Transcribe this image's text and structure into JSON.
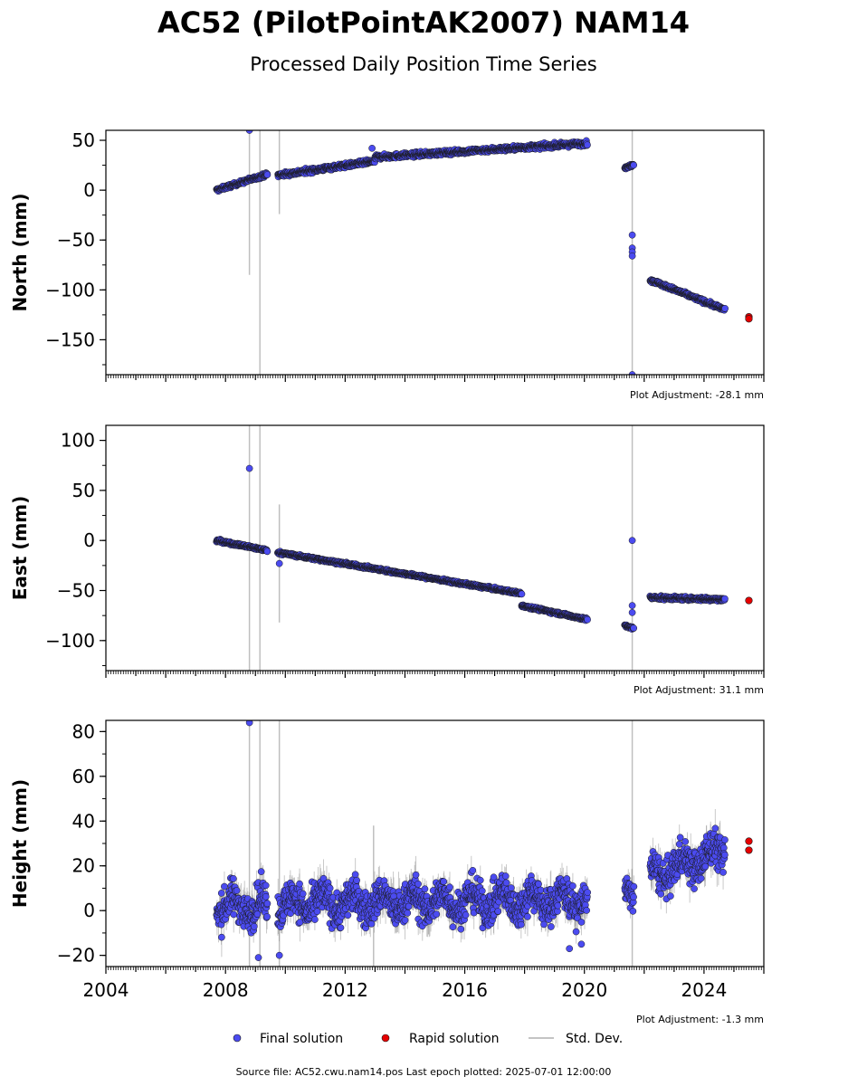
{
  "title": "AC52 (PilotPointAK2007) NAM14",
  "subtitle": "Processed Daily Position Time Series",
  "footer": "Source file: AC52.cwu.nam14.pos  Last epoch plotted: 2025-07-01 12:00:00",
  "colors": {
    "final": "#4b4bf0",
    "rapid": "#e60000",
    "stddev": "#b0b0b0",
    "marker_edge": "#1a1a1a"
  },
  "legend": {
    "position": "bottom-center",
    "items": [
      {
        "label": "Final solution",
        "marker": "dot",
        "color": "#4b4bf0"
      },
      {
        "label": "Rapid solution",
        "marker": "dot",
        "color": "#e60000"
      },
      {
        "label": "Std. Dev.",
        "marker": "line",
        "color": "#b0b0b0"
      }
    ]
  },
  "chart_data": [
    {
      "type": "scatter",
      "ylabel": "North (mm)",
      "xlim": [
        2004.0,
        2026.0
      ],
      "ylim": [
        -185,
        60
      ],
      "yticks": [
        50,
        0,
        -50,
        -100,
        -150
      ],
      "xtick_labels_shown": false,
      "adjustment": "Plot Adjustment: -28.1 mm",
      "stddev_lines": [
        {
          "x": 2008.8,
          "y0": -85,
          "y1": 60
        },
        {
          "x": 2009.15,
          "y0": -185,
          "y1": 60
        },
        {
          "x": 2009.8,
          "y0": -24,
          "y1": 60
        },
        {
          "x": 2021.6,
          "y0": -185,
          "y1": 60
        }
      ],
      "final_segments": [
        {
          "x0": 2007.7,
          "x1": 2009.4,
          "y0": 0,
          "y1": 16,
          "noise": 2
        },
        {
          "x0": 2009.75,
          "x1": 2013.0,
          "y0": 15,
          "y1": 29,
          "noise": 2.5
        },
        {
          "x0": 2013.0,
          "x1": 2020.1,
          "y0": 33,
          "y1": 47,
          "noise": 2.5
        },
        {
          "x0": 2021.35,
          "x1": 2021.65,
          "y0": 22,
          "y1": 26,
          "noise": 1.5
        },
        {
          "x0": 2022.2,
          "x1": 2024.7,
          "y0": -90,
          "y1": -120,
          "noise": 2
        }
      ],
      "final_points": [
        {
          "x": 2008.8,
          "y": 60
        },
        {
          "x": 2012.9,
          "y": 42
        },
        {
          "x": 2021.6,
          "y": -45
        },
        {
          "x": 2021.6,
          "y": -58
        },
        {
          "x": 2021.6,
          "y": -62
        },
        {
          "x": 2021.6,
          "y": -66
        },
        {
          "x": 2021.6,
          "y": -185
        }
      ],
      "rapid_points": [
        {
          "x": 2025.5,
          "y": -127
        },
        {
          "x": 2025.5,
          "y": -129
        }
      ]
    },
    {
      "type": "scatter",
      "ylabel": "East (mm)",
      "xlim": [
        2004.0,
        2026.0
      ],
      "ylim": [
        -130,
        115
      ],
      "yticks": [
        100,
        50,
        0,
        -50,
        -100
      ],
      "xtick_labels_shown": false,
      "adjustment": "Plot Adjustment: 31.1 mm",
      "stddev_lines": [
        {
          "x": 2008.8,
          "y0": -130,
          "y1": 115
        },
        {
          "x": 2009.15,
          "y0": -130,
          "y1": 115
        },
        {
          "x": 2009.8,
          "y0": -82,
          "y1": 36
        },
        {
          "x": 2021.6,
          "y0": -130,
          "y1": 115
        }
      ],
      "final_segments": [
        {
          "x0": 2007.7,
          "x1": 2009.4,
          "y0": 0,
          "y1": -10,
          "noise": 1.5
        },
        {
          "x0": 2009.75,
          "x1": 2017.9,
          "y0": -12,
          "y1": -53,
          "noise": 1.5
        },
        {
          "x0": 2017.9,
          "x1": 2020.1,
          "y0": -65,
          "y1": -79,
          "noise": 1.5
        },
        {
          "x0": 2021.35,
          "x1": 2021.65,
          "y0": -85,
          "y1": -88,
          "noise": 1.5
        },
        {
          "x0": 2022.2,
          "x1": 2024.7,
          "y0": -57,
          "y1": -59,
          "noise": 2
        }
      ],
      "final_points": [
        {
          "x": 2008.8,
          "y": 72
        },
        {
          "x": 2009.8,
          "y": -23
        },
        {
          "x": 2021.6,
          "y": 0
        },
        {
          "x": 2021.6,
          "y": -65
        },
        {
          "x": 2021.6,
          "y": -72
        }
      ],
      "rapid_points": [
        {
          "x": 2025.5,
          "y": -60
        }
      ]
    },
    {
      "type": "scatter",
      "ylabel": "Height (mm)",
      "xlim": [
        2004.0,
        2026.0
      ],
      "ylim": [
        -25,
        85
      ],
      "yticks": [
        80,
        60,
        40,
        20,
        0,
        -20
      ],
      "xticks": [
        2004,
        2008,
        2012,
        2016,
        2020,
        2024
      ],
      "xtick_labels_shown": true,
      "adjustment": "Plot Adjustment: -1.3 mm",
      "stddev_lines": [
        {
          "x": 2008.8,
          "y0": -25,
          "y1": 85
        },
        {
          "x": 2009.15,
          "y0": -25,
          "y1": 85
        },
        {
          "x": 2009.8,
          "y0": -25,
          "y1": 85
        },
        {
          "x": 2012.95,
          "y0": -25,
          "y1": 38
        },
        {
          "x": 2021.6,
          "y0": -25,
          "y1": 85
        }
      ],
      "final_segments": [
        {
          "x0": 2007.7,
          "x1": 2009.4,
          "y0": 2,
          "y1": 2,
          "noise": 9
        },
        {
          "x0": 2009.75,
          "x1": 2020.1,
          "y0": 3,
          "y1": 5,
          "noise": 9
        },
        {
          "x0": 2021.35,
          "x1": 2021.65,
          "y0": 5,
          "y1": 10,
          "noise": 7
        },
        {
          "x0": 2022.2,
          "x1": 2024.7,
          "y0": 15,
          "y1": 27,
          "noise": 9
        }
      ],
      "final_points": [
        {
          "x": 2008.8,
          "y": 84
        },
        {
          "x": 2009.1,
          "y": -21
        },
        {
          "x": 2009.8,
          "y": -20
        },
        {
          "x": 2019.5,
          "y": -17
        },
        {
          "x": 2019.9,
          "y": -15
        }
      ],
      "rapid_points": [
        {
          "x": 2025.5,
          "y": 31
        },
        {
          "x": 2025.5,
          "y": 27
        }
      ]
    }
  ]
}
